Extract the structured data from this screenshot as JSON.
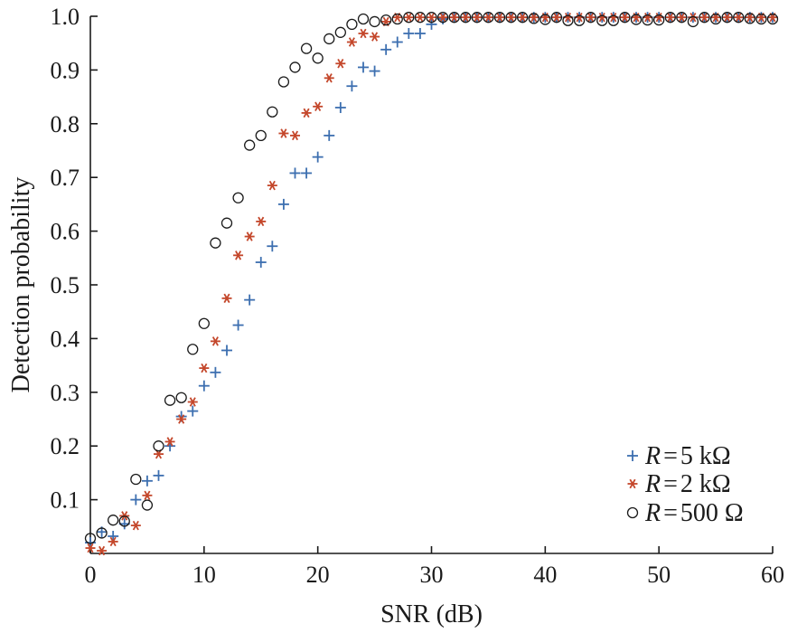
{
  "chart_data": {
    "type": "scatter",
    "xlabel": "SNR (dB)",
    "ylabel": "Detection probability",
    "xlim": [
      0,
      60
    ],
    "ylim": [
      0,
      1.0
    ],
    "xticks": [
      0,
      10,
      20,
      30,
      40,
      50,
      60
    ],
    "yticks": [
      0.1,
      0.2,
      0.3,
      0.4,
      0.5,
      0.6,
      0.7,
      0.8,
      0.9,
      1.0
    ],
    "xtick_labels": [
      "0",
      "10",
      "20",
      "30",
      "40",
      "50",
      "60"
    ],
    "ytick_labels": [
      "0.1",
      "0.2",
      "0.3",
      "0.4",
      "0.5",
      "0.6",
      "0.7",
      "0.8",
      "0.9",
      "1.0"
    ],
    "grid": false,
    "legend_position": "bottom-right",
    "series": [
      {
        "name": "R = 5 kΩ",
        "legend": {
          "var": "R",
          "eq": "=",
          "value": "5 kΩ"
        },
        "marker": "plus",
        "color": "#3d6fb0",
        "x": [
          0,
          1,
          2,
          3,
          4,
          5,
          6,
          7,
          8,
          9,
          10,
          11,
          12,
          13,
          14,
          15,
          16,
          17,
          18,
          19,
          20,
          21,
          22,
          23,
          24,
          25,
          26,
          27,
          28,
          29,
          30,
          31,
          32,
          33,
          34,
          35,
          36,
          37,
          38,
          39,
          40,
          41,
          42,
          43,
          44,
          45,
          46,
          47,
          48,
          49,
          50,
          51,
          52,
          53,
          54,
          55,
          56,
          57,
          58,
          59,
          60
        ],
        "y": [
          0.02,
          0.04,
          0.032,
          0.055,
          0.1,
          0.135,
          0.145,
          0.2,
          0.255,
          0.265,
          0.312,
          0.337,
          0.378,
          0.425,
          0.472,
          0.542,
          0.572,
          0.65,
          0.708,
          0.708,
          0.738,
          0.778,
          0.83,
          0.87,
          0.905,
          0.898,
          0.938,
          0.952,
          0.968,
          0.968,
          0.985,
          0.995,
          0.998,
          0.998,
          0.998,
          0.998,
          0.998,
          0.998,
          0.998,
          0.998,
          0.998,
          0.998,
          0.998,
          0.998,
          0.998,
          0.998,
          0.998,
          0.998,
          0.998,
          0.998,
          0.998,
          0.998,
          0.998,
          0.998,
          0.998,
          0.998,
          0.998,
          0.998,
          0.998,
          0.998,
          0.998
        ]
      },
      {
        "name": "R = 2 kΩ",
        "legend": {
          "var": "R",
          "eq": "=",
          "value": "2 kΩ"
        },
        "marker": "asterisk",
        "color": "#c4472b",
        "x": [
          0,
          1,
          2,
          3,
          4,
          5,
          6,
          7,
          8,
          9,
          10,
          11,
          12,
          13,
          14,
          15,
          16,
          17,
          18,
          19,
          20,
          21,
          22,
          23,
          24,
          25,
          26,
          27,
          28,
          29,
          30,
          31,
          32,
          33,
          34,
          35,
          36,
          37,
          38,
          39,
          40,
          41,
          42,
          43,
          44,
          45,
          46,
          47,
          48,
          49,
          50,
          51,
          52,
          53,
          54,
          55,
          56,
          57,
          58,
          59,
          60
        ],
        "y": [
          0.01,
          0.005,
          0.022,
          0.07,
          0.052,
          0.108,
          0.185,
          0.208,
          0.25,
          0.282,
          0.345,
          0.395,
          0.475,
          0.555,
          0.59,
          0.618,
          0.685,
          0.782,
          0.778,
          0.82,
          0.832,
          0.885,
          0.912,
          0.952,
          0.968,
          0.962,
          0.99,
          0.998,
          0.998,
          0.998,
          0.998,
          0.998,
          0.998,
          0.998,
          0.998,
          0.998,
          0.998,
          0.998,
          0.998,
          0.998,
          0.998,
          0.998,
          0.998,
          0.998,
          0.998,
          0.998,
          0.998,
          0.998,
          0.998,
          0.998,
          0.998,
          0.998,
          0.998,
          0.998,
          0.998,
          0.998,
          0.998,
          0.998,
          0.998,
          0.998,
          0.998
        ]
      },
      {
        "name": "R = 500 Ω",
        "legend": {
          "var": "R",
          "eq": "=",
          "value": "500 Ω"
        },
        "marker": "circle",
        "color": "#1a1a1a",
        "x": [
          0,
          1,
          2,
          3,
          4,
          5,
          6,
          7,
          8,
          9,
          10,
          11,
          12,
          13,
          14,
          15,
          16,
          17,
          18,
          19,
          20,
          21,
          22,
          23,
          24,
          25,
          26,
          27,
          28,
          29,
          30,
          31,
          32,
          33,
          34,
          35,
          36,
          37,
          38,
          39,
          40,
          41,
          42,
          43,
          44,
          45,
          46,
          47,
          48,
          49,
          50,
          51,
          52,
          53,
          54,
          55,
          56,
          57,
          58,
          59,
          60
        ],
        "y": [
          0.028,
          0.038,
          0.062,
          0.06,
          0.138,
          0.09,
          0.2,
          0.285,
          0.29,
          0.38,
          0.428,
          0.578,
          0.615,
          0.662,
          0.76,
          0.778,
          0.822,
          0.878,
          0.905,
          0.94,
          0.922,
          0.958,
          0.97,
          0.985,
          0.995,
          0.99,
          0.993,
          0.995,
          0.998,
          0.998,
          0.998,
          0.998,
          0.998,
          0.998,
          0.998,
          0.998,
          0.998,
          0.998,
          0.998,
          0.996,
          0.994,
          0.998,
          0.992,
          0.992,
          0.998,
          0.992,
          0.992,
          0.998,
          0.994,
          0.993,
          0.993,
          0.998,
          0.998,
          0.99,
          0.998,
          0.995,
          0.998,
          0.998,
          0.996,
          0.995,
          0.995
        ]
      }
    ]
  }
}
